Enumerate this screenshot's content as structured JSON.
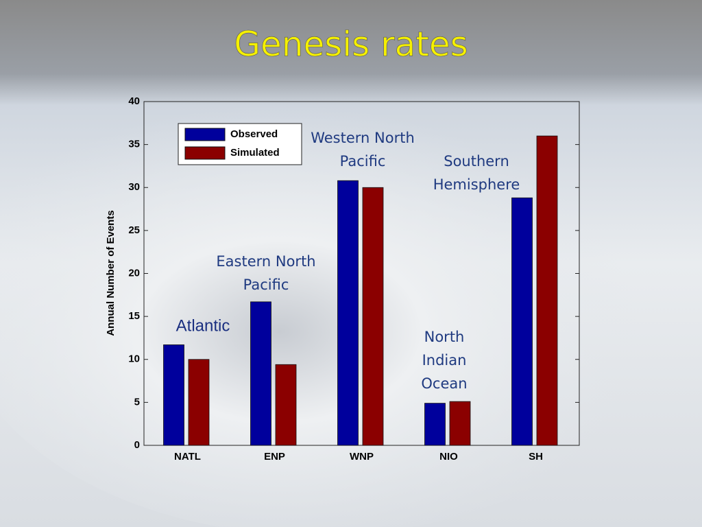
{
  "chart_data": {
    "type": "bar",
    "title": "Genesis rates",
    "y_label": "Annual Number of Events",
    "categories": [
      "NATL",
      "ENP",
      "WNP",
      "NIO",
      "SH"
    ],
    "series": [
      {
        "name": "Observed",
        "color": "#00009c",
        "values": [
          11.7,
          16.7,
          30.8,
          4.9,
          28.8
        ]
      },
      {
        "name": "Simulated",
        "color": "#8b0000",
        "values": [
          10.0,
          9.4,
          30.0,
          5.1,
          36.0
        ]
      }
    ],
    "ylim": [
      0,
      40
    ],
    "yticks": [
      0,
      5,
      10,
      15,
      20,
      25,
      30,
      35,
      40
    ],
    "legend": "upper-left",
    "annotations": [
      [
        "Atlantic"
      ],
      [
        "Eastern North",
        "Pacific"
      ],
      [
        "Western North",
        "Pacific"
      ],
      [
        "North",
        "Indian",
        "Ocean"
      ],
      [
        "Southern",
        "Hemisphere"
      ]
    ]
  }
}
